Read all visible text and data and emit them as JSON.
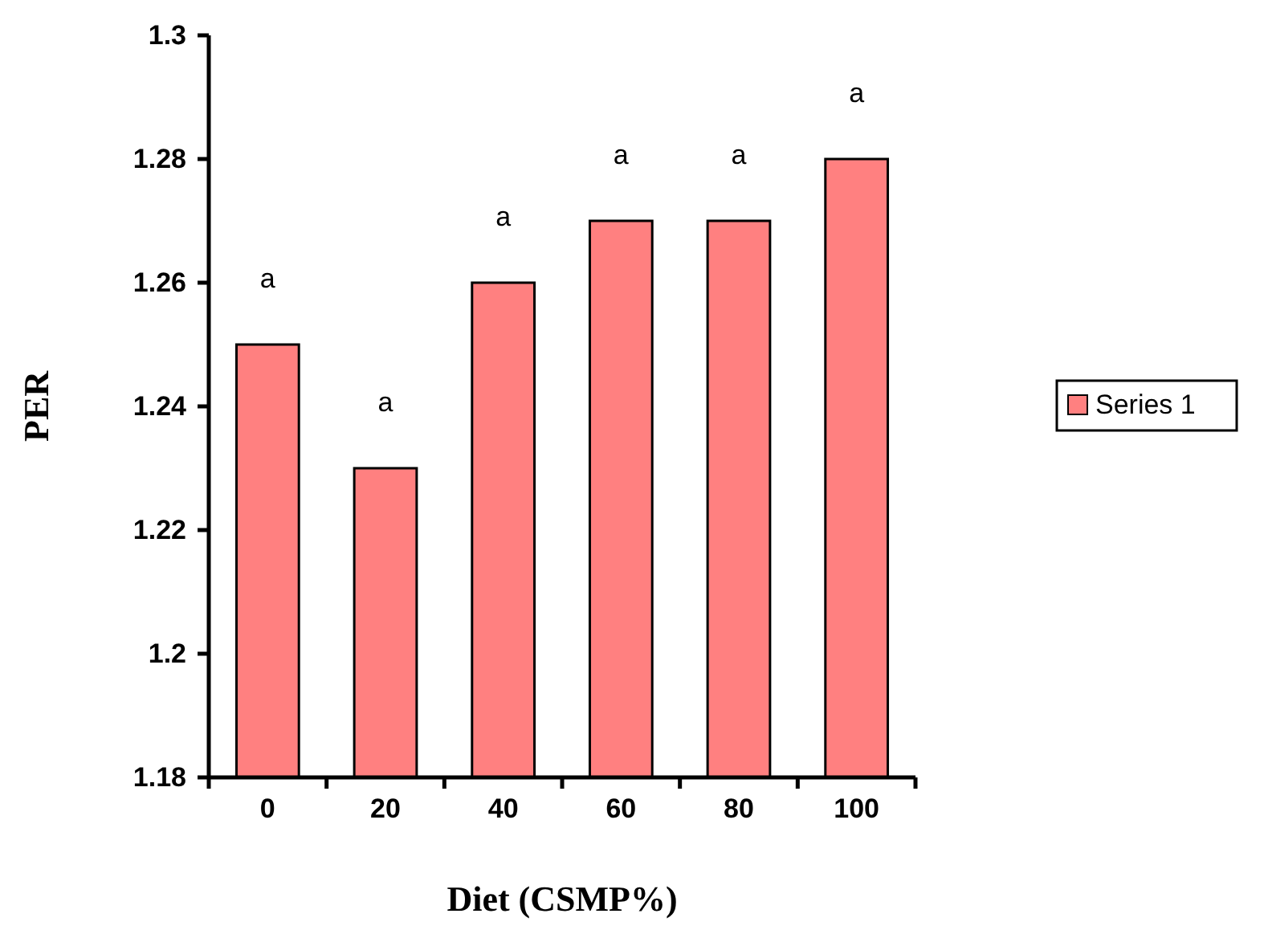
{
  "chart_data": {
    "type": "bar",
    "xlabel": "Diet (CSMP%)",
    "ylabel": "PER",
    "categories": [
      "0",
      "20",
      "40",
      "60",
      "80",
      "100"
    ],
    "series": [
      {
        "name": "Series 1",
        "color": "#ff8080",
        "values": [
          1.25,
          1.23,
          1.26,
          1.27,
          1.27,
          1.28
        ]
      }
    ],
    "ylim": [
      1.18,
      1.3
    ],
    "yticks": [
      1.18,
      1.2,
      1.22,
      1.24,
      1.26,
      1.28,
      1.3
    ],
    "annotations": [
      {
        "text": "a",
        "x": "0",
        "y": 1.25
      },
      {
        "text": "a",
        "x": "20",
        "y": 1.23
      },
      {
        "text": "a",
        "x": "40",
        "y": 1.26
      },
      {
        "text": "a",
        "x": "60",
        "y": 1.27
      },
      {
        "text": "a",
        "x": "80",
        "y": 1.27
      },
      {
        "text": "a",
        "x": "100",
        "y": 1.28
      }
    ],
    "grid": false,
    "legend": "right"
  }
}
